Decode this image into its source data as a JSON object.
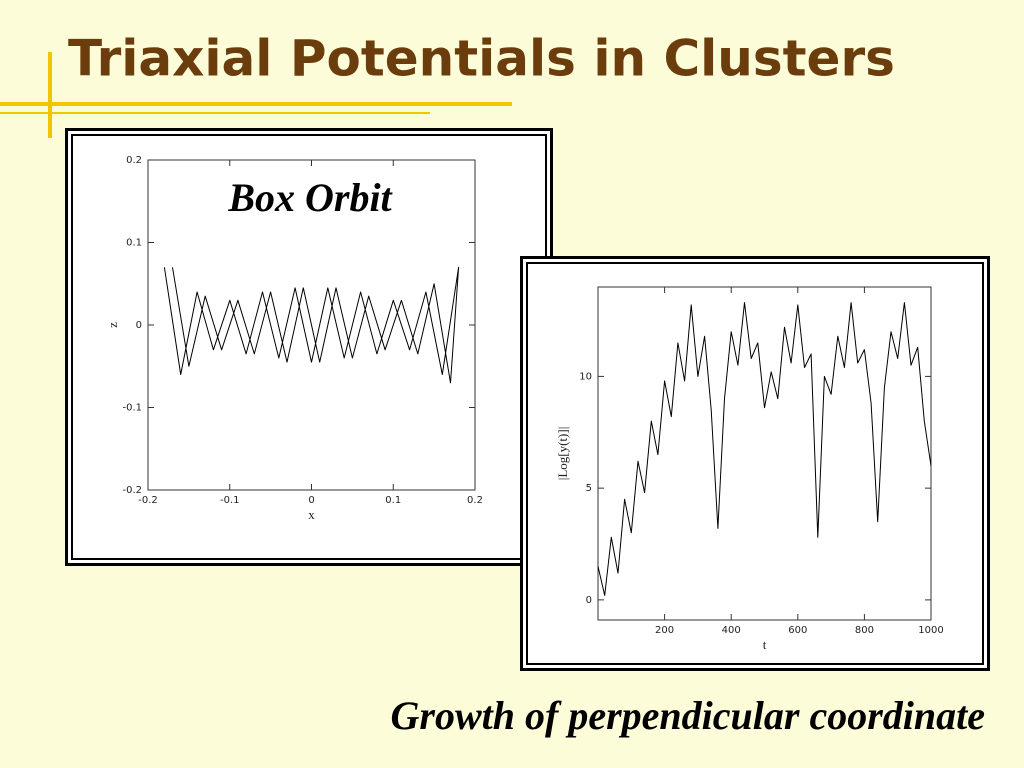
{
  "title": "Triaxial Potentials in Clusters",
  "caption": "Growth of perpendicular coordinate",
  "chart_data": [
    {
      "type": "line",
      "annotation": "Box Orbit",
      "x_label": "x",
      "y_label": "z",
      "color": "#000000",
      "xlim": [
        -0.2,
        0.2
      ],
      "ylim": [
        -0.2,
        0.2
      ],
      "xticks": [
        -0.2,
        -0.1,
        0,
        0.1,
        0.2
      ],
      "yticks": [
        -0.2,
        -0.1,
        0,
        0.1,
        0.2
      ],
      "x": [
        -0.18,
        -0.16,
        -0.14,
        -0.12,
        -0.1,
        -0.08,
        -0.06,
        -0.04,
        -0.02,
        0,
        0.02,
        0.04,
        0.06,
        0.08,
        0.1,
        0.12,
        0.14,
        0.16,
        0.18,
        0.17,
        0.15,
        0.13,
        0.11,
        0.09,
        0.07,
        0.05,
        0.03,
        0.01,
        -0.01,
        -0.03,
        -0.05,
        -0.07,
        -0.09,
        -0.11,
        -0.13,
        -0.15,
        -0.17
      ],
      "values": [
        0.07,
        -0.06,
        0.04,
        -0.03,
        0.03,
        -0.035,
        0.04,
        -0.04,
        0.045,
        -0.045,
        0.045,
        -0.04,
        0.04,
        -0.035,
        0.03,
        -0.03,
        0.04,
        -0.06,
        0.07,
        -0.07,
        0.05,
        -0.035,
        0.03,
        -0.03,
        0.035,
        -0.04,
        0.045,
        -0.045,
        0.045,
        -0.045,
        0.04,
        -0.035,
        0.03,
        -0.03,
        0.035,
        -0.05,
        0.07
      ]
    },
    {
      "type": "line",
      "x_label": "t",
      "y_label": "|Log[y(t)]|",
      "color": "#000000",
      "xlim": [
        0,
        1000
      ],
      "ylim": [
        -0.9,
        14
      ],
      "xticks": [
        200,
        400,
        600,
        800,
        1000
      ],
      "yticks": [
        0,
        5,
        10
      ],
      "x": [
        0,
        20,
        40,
        60,
        80,
        100,
        120,
        140,
        160,
        180,
        200,
        220,
        240,
        260,
        280,
        300,
        320,
        340,
        360,
        380,
        400,
        420,
        440,
        460,
        480,
        500,
        520,
        540,
        560,
        580,
        600,
        620,
        640,
        660,
        680,
        700,
        720,
        740,
        760,
        780,
        800,
        820,
        840,
        860,
        880,
        900,
        920,
        940,
        960,
        980,
        1000
      ],
      "values": [
        1.5,
        0.2,
        2.8,
        1.2,
        4.5,
        3.0,
        6.2,
        4.8,
        8.0,
        6.5,
        9.8,
        8.2,
        11.5,
        9.8,
        13.2,
        10.0,
        11.8,
        8.5,
        3.2,
        9.0,
        12.0,
        10.5,
        13.3,
        10.8,
        11.5,
        8.6,
        10.2,
        9.0,
        12.2,
        10.6,
        13.2,
        10.4,
        11.0,
        2.8,
        10.0,
        9.2,
        11.8,
        10.4,
        13.3,
        10.6,
        11.2,
        8.8,
        3.5,
        9.5,
        12.0,
        10.8,
        13.3,
        10.5,
        11.3,
        8.0,
        6.0
      ]
    }
  ]
}
